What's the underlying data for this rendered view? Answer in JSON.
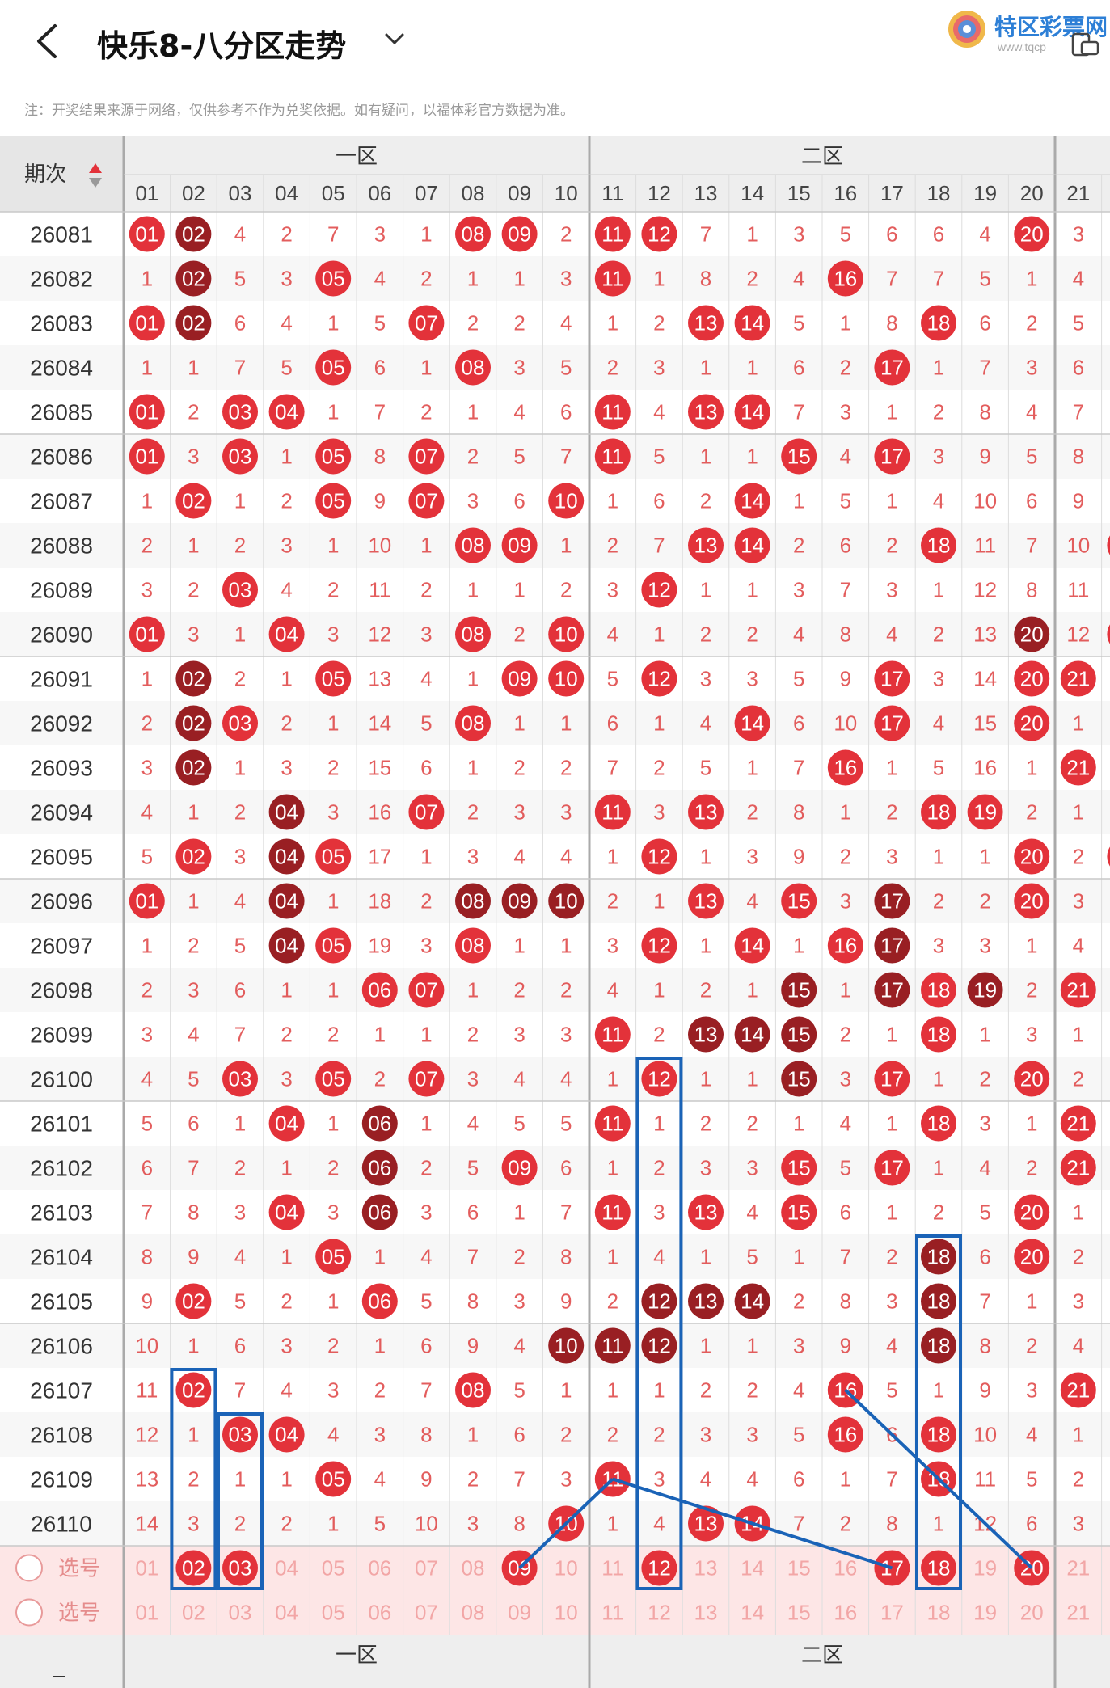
{
  "header": {
    "title": "快乐8-八分区走势",
    "logo_text": "特区彩票网",
    "logo_sub": "www.tqcp"
  },
  "note": "注：开奖结果来源于网络，仅供参考不作为兑奖依据。如有疑问，以福体彩官方数据为准。",
  "table": {
    "period_header": "期次",
    "zones": [
      "一区",
      "二区"
    ],
    "columns": [
      "01",
      "02",
      "03",
      "04",
      "05",
      "06",
      "07",
      "08",
      "09",
      "10",
      "11",
      "12",
      "13",
      "14",
      "15",
      "16",
      "17",
      "18",
      "19",
      "20",
      "21",
      "2"
    ],
    "rows": [
      {
        "p": "26081",
        "c": [
          "01",
          "02",
          "4",
          "2",
          "7",
          "3",
          "1",
          "08",
          "09",
          "2",
          "11",
          "12",
          "7",
          "1",
          "3",
          "5",
          "6",
          "6",
          "4",
          "20",
          "3",
          ""
        ]
      },
      {
        "p": "26082",
        "c": [
          "1",
          "02",
          "5",
          "3",
          "05",
          "4",
          "2",
          "1",
          "1",
          "3",
          "11",
          "1",
          "8",
          "2",
          "4",
          "16",
          "7",
          "7",
          "5",
          "1",
          "4",
          ""
        ]
      },
      {
        "p": "26083",
        "c": [
          "01",
          "02",
          "6",
          "4",
          "1",
          "5",
          "07",
          "2",
          "2",
          "4",
          "1",
          "2",
          "13",
          "14",
          "5",
          "1",
          "8",
          "18",
          "6",
          "2",
          "5",
          ""
        ]
      },
      {
        "p": "26084",
        "c": [
          "1",
          "1",
          "7",
          "5",
          "05",
          "6",
          "1",
          "08",
          "3",
          "5",
          "2",
          "3",
          "1",
          "1",
          "6",
          "2",
          "17",
          "1",
          "7",
          "3",
          "6",
          ""
        ]
      },
      {
        "p": "26085",
        "c": [
          "01",
          "2",
          "03",
          "04",
          "1",
          "7",
          "2",
          "1",
          "4",
          "6",
          "11",
          "4",
          "13",
          "14",
          "7",
          "3",
          "1",
          "2",
          "8",
          "4",
          "7",
          ""
        ]
      },
      {
        "p": "26086",
        "c": [
          "01",
          "3",
          "03",
          "1",
          "05",
          "8",
          "07",
          "2",
          "5",
          "7",
          "11",
          "5",
          "1",
          "1",
          "15",
          "4",
          "17",
          "3",
          "9",
          "5",
          "8",
          ""
        ]
      },
      {
        "p": "26087",
        "c": [
          "1",
          "02",
          "1",
          "2",
          "05",
          "9",
          "07",
          "3",
          "6",
          "10",
          "1",
          "6",
          "2",
          "14",
          "1",
          "5",
          "1",
          "4",
          "10",
          "6",
          "9",
          ""
        ]
      },
      {
        "p": "26088",
        "c": [
          "2",
          "1",
          "2",
          "3",
          "1",
          "10",
          "1",
          "08",
          "09",
          "1",
          "2",
          "7",
          "13",
          "14",
          "2",
          "6",
          "2",
          "18",
          "11",
          "7",
          "10",
          "22"
        ]
      },
      {
        "p": "26089",
        "c": [
          "3",
          "2",
          "03",
          "4",
          "2",
          "11",
          "2",
          "1",
          "1",
          "2",
          "3",
          "12",
          "1",
          "1",
          "3",
          "7",
          "3",
          "1",
          "12",
          "8",
          "11",
          ""
        ]
      },
      {
        "p": "26090",
        "c": [
          "01",
          "3",
          "1",
          "04",
          "3",
          "12",
          "3",
          "08",
          "2",
          "10",
          "4",
          "1",
          "2",
          "2",
          "4",
          "8",
          "4",
          "2",
          "13",
          "20",
          "12",
          "22"
        ]
      },
      {
        "p": "26091",
        "c": [
          "1",
          "02",
          "2",
          "1",
          "05",
          "13",
          "4",
          "1",
          "09",
          "10",
          "5",
          "12",
          "3",
          "3",
          "5",
          "9",
          "17",
          "3",
          "14",
          "20",
          "21",
          ""
        ]
      },
      {
        "p": "26092",
        "c": [
          "2",
          "02",
          "03",
          "2",
          "1",
          "14",
          "5",
          "08",
          "1",
          "1",
          "6",
          "1",
          "4",
          "14",
          "6",
          "10",
          "17",
          "4",
          "15",
          "20",
          "1",
          ""
        ]
      },
      {
        "p": "26093",
        "c": [
          "3",
          "02",
          "1",
          "3",
          "2",
          "15",
          "6",
          "1",
          "2",
          "2",
          "7",
          "2",
          "5",
          "1",
          "7",
          "16",
          "1",
          "5",
          "16",
          "1",
          "21",
          ""
        ]
      },
      {
        "p": "26094",
        "c": [
          "4",
          "1",
          "2",
          "04",
          "3",
          "16",
          "07",
          "2",
          "3",
          "3",
          "11",
          "3",
          "13",
          "2",
          "8",
          "1",
          "2",
          "18",
          "19",
          "2",
          "1",
          ""
        ]
      },
      {
        "p": "26095",
        "c": [
          "5",
          "02",
          "3",
          "04",
          "05",
          "17",
          "1",
          "3",
          "4",
          "4",
          "1",
          "12",
          "1",
          "3",
          "9",
          "2",
          "3",
          "1",
          "1",
          "20",
          "2",
          "22"
        ]
      },
      {
        "p": "26096",
        "c": [
          "01",
          "1",
          "4",
          "04",
          "1",
          "18",
          "2",
          "08",
          "09",
          "10",
          "2",
          "1",
          "13",
          "4",
          "15",
          "3",
          "17",
          "2",
          "2",
          "20",
          "3",
          ""
        ]
      },
      {
        "p": "26097",
        "c": [
          "1",
          "2",
          "5",
          "04",
          "05",
          "19",
          "3",
          "08",
          "1",
          "1",
          "3",
          "12",
          "1",
          "14",
          "1",
          "16",
          "17",
          "3",
          "3",
          "1",
          "4",
          ""
        ]
      },
      {
        "p": "26098",
        "c": [
          "2",
          "3",
          "6",
          "1",
          "1",
          "06",
          "07",
          "1",
          "2",
          "2",
          "4",
          "1",
          "2",
          "1",
          "15",
          "1",
          "17",
          "18",
          "19",
          "2",
          "21",
          ""
        ]
      },
      {
        "p": "26099",
        "c": [
          "3",
          "4",
          "7",
          "2",
          "2",
          "1",
          "1",
          "2",
          "3",
          "3",
          "11",
          "2",
          "13",
          "14",
          "15",
          "2",
          "1",
          "18",
          "1",
          "3",
          "1",
          ""
        ]
      },
      {
        "p": "26100",
        "c": [
          "4",
          "5",
          "03",
          "3",
          "05",
          "2",
          "07",
          "3",
          "4",
          "4",
          "1",
          "12",
          "1",
          "1",
          "15",
          "3",
          "17",
          "1",
          "2",
          "20",
          "2",
          ""
        ]
      },
      {
        "p": "26101",
        "c": [
          "5",
          "6",
          "1",
          "04",
          "1",
          "06",
          "1",
          "4",
          "5",
          "5",
          "11",
          "1",
          "2",
          "2",
          "1",
          "4",
          "1",
          "18",
          "3",
          "1",
          "21",
          ""
        ]
      },
      {
        "p": "26102",
        "c": [
          "6",
          "7",
          "2",
          "1",
          "2",
          "06",
          "2",
          "5",
          "09",
          "6",
          "1",
          "2",
          "3",
          "3",
          "15",
          "5",
          "17",
          "1",
          "4",
          "2",
          "21",
          ""
        ]
      },
      {
        "p": "26103",
        "c": [
          "7",
          "8",
          "3",
          "04",
          "3",
          "06",
          "3",
          "6",
          "1",
          "7",
          "11",
          "3",
          "13",
          "4",
          "15",
          "6",
          "1",
          "2",
          "5",
          "20",
          "1",
          ""
        ]
      },
      {
        "p": "26104",
        "c": [
          "8",
          "9",
          "4",
          "1",
          "05",
          "1",
          "4",
          "7",
          "2",
          "8",
          "1",
          "4",
          "1",
          "5",
          "1",
          "7",
          "2",
          "18",
          "6",
          "20",
          "2",
          ""
        ]
      },
      {
        "p": "26105",
        "c": [
          "9",
          "02",
          "5",
          "2",
          "1",
          "06",
          "5",
          "8",
          "3",
          "9",
          "2",
          "12",
          "13",
          "14",
          "2",
          "8",
          "3",
          "18",
          "7",
          "1",
          "3",
          ""
        ]
      },
      {
        "p": "26106",
        "c": [
          "10",
          "1",
          "6",
          "3",
          "2",
          "1",
          "6",
          "9",
          "4",
          "10",
          "11",
          "12",
          "1",
          "1",
          "3",
          "9",
          "4",
          "18",
          "8",
          "2",
          "4",
          ""
        ]
      },
      {
        "p": "26107",
        "c": [
          "11",
          "02",
          "7",
          "4",
          "3",
          "2",
          "7",
          "08",
          "5",
          "1",
          "1",
          "1",
          "2",
          "2",
          "4",
          "16",
          "5",
          "1",
          "9",
          "3",
          "21",
          ""
        ]
      },
      {
        "p": "26108",
        "c": [
          "12",
          "1",
          "03",
          "04",
          "4",
          "3",
          "8",
          "1",
          "6",
          "2",
          "2",
          "2",
          "3",
          "3",
          "5",
          "16",
          "6",
          "18",
          "10",
          "4",
          "1",
          ""
        ]
      },
      {
        "p": "26109",
        "c": [
          "13",
          "2",
          "1",
          "1",
          "05",
          "4",
          "9",
          "2",
          "7",
          "3",
          "11",
          "3",
          "4",
          "4",
          "6",
          "1",
          "7",
          "18",
          "11",
          "5",
          "2",
          ""
        ]
      },
      {
        "p": "26110",
        "c": [
          "14",
          "3",
          "2",
          "2",
          "1",
          "5",
          "10",
          "3",
          "8",
          "10",
          "1",
          "4",
          "13",
          "14",
          "7",
          "2",
          "8",
          "1",
          "12",
          "6",
          "3",
          ""
        ]
      }
    ],
    "select_label": "选号",
    "select_row1": [
      "01",
      "02",
      "03",
      "04",
      "05",
      "06",
      "07",
      "08",
      "09",
      "10",
      "11",
      "12",
      "13",
      "14",
      "15",
      "16",
      "17",
      "18",
      "19",
      "20",
      "21"
    ],
    "select_row2": [
      "01",
      "02",
      "03",
      "04",
      "05",
      "06",
      "07",
      "08",
      "09",
      "10",
      "11",
      "12",
      "13",
      "14",
      "15",
      "16",
      "17",
      "18",
      "19",
      "20",
      "21"
    ],
    "footer_zones": [
      "一区",
      "二区"
    ]
  },
  "colors": {
    "ball_red": "#e3323a",
    "ball_dark": "#991f23",
    "digit_red": "#e04c4c",
    "header_bg": "#eeeeee",
    "select_bg": "#fde6e6",
    "annotation_blue": "#1a63b7"
  }
}
